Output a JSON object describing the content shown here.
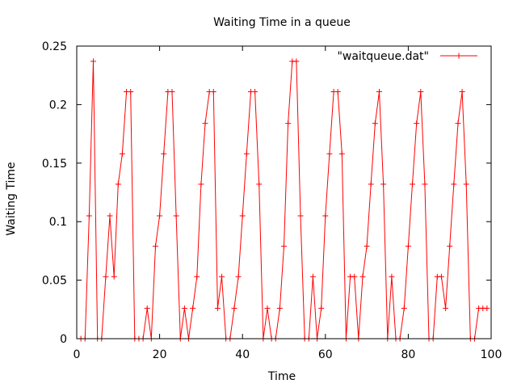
{
  "chart_data": {
    "type": "line",
    "title": "Waiting Time in a queue",
    "xlabel": "Time",
    "ylabel": "Waiting Time",
    "xlim": [
      0,
      100
    ],
    "ylim": [
      0,
      0.25
    ],
    "x_ticks": [
      0,
      20,
      40,
      60,
      80,
      100
    ],
    "y_ticks": [
      0,
      0.05,
      0.1,
      0.15,
      0.2,
      0.25
    ],
    "x_tick_labels": [
      "0",
      "20",
      "40",
      "60",
      "80",
      "100"
    ],
    "y_tick_labels": [
      "0",
      "0.05",
      "0.1",
      "0.15",
      "0.2",
      "0.25"
    ],
    "legend_position": "top-right",
    "grid": false,
    "series": [
      {
        "name": "\"waitqueue.dat\"",
        "color": "#ff0000",
        "marker": "plus",
        "x": [
          1,
          2,
          3,
          4,
          5,
          6,
          7,
          8,
          9,
          10,
          11,
          12,
          13,
          14,
          15,
          16,
          17,
          18,
          19,
          20,
          21,
          22,
          23,
          24,
          25,
          26,
          27,
          28,
          29,
          30,
          31,
          32,
          33,
          34,
          35,
          36,
          37,
          38,
          39,
          40,
          41,
          42,
          43,
          44,
          45,
          46,
          47,
          48,
          49,
          50,
          51,
          52,
          53,
          54,
          55,
          56,
          57,
          58,
          59,
          60,
          61,
          62,
          63,
          64,
          65,
          66,
          67,
          68,
          69,
          70,
          71,
          72,
          73,
          74,
          75,
          76,
          77,
          78,
          79,
          80,
          81,
          82,
          83,
          84,
          85,
          86,
          87,
          88,
          89,
          90,
          91,
          92,
          93,
          94,
          95,
          96,
          97,
          98,
          99
        ],
        "y": [
          0,
          0,
          0.105,
          0.237,
          0,
          0,
          0.053,
          0.105,
          0.053,
          0.132,
          0.158,
          0.211,
          0.211,
          0,
          0,
          0,
          0.026,
          0,
          0.079,
          0.105,
          0.158,
          0.211,
          0.211,
          0.105,
          0,
          0.026,
          0,
          0.026,
          0.053,
          0.132,
          0.184,
          0.211,
          0.211,
          0.026,
          0.053,
          0,
          0,
          0.026,
          0.053,
          0.105,
          0.158,
          0.211,
          0.211,
          0.132,
          0,
          0.026,
          0,
          0,
          0.026,
          0.079,
          0.184,
          0.237,
          0.237,
          0.105,
          0,
          0,
          0.053,
          0,
          0.026,
          0.105,
          0.158,
          0.211,
          0.211,
          0.158,
          0,
          0.053,
          0.053,
          0,
          0.053,
          0.079,
          0.132,
          0.184,
          0.211,
          0.132,
          0,
          0.053,
          0,
          0,
          0.026,
          0.079,
          0.132,
          0.184,
          0.211,
          0.132,
          0,
          0,
          0.053,
          0.053,
          0.026,
          0.079,
          0.132,
          0.184,
          0.211,
          0.132,
          0,
          0,
          0.026,
          0.026,
          0.026
        ]
      }
    ]
  }
}
